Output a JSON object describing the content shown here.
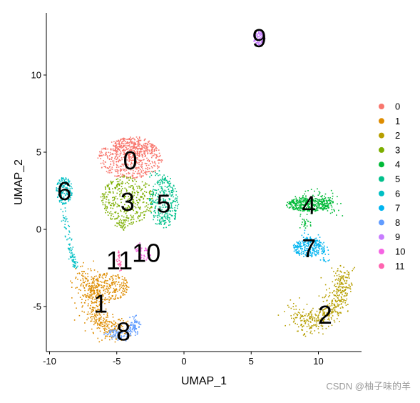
{
  "chart_data": {
    "type": "scatter",
    "title": "",
    "xlabel": "UMAP_1",
    "ylabel": "UMAP_2",
    "xlim": [
      -10.5,
      13.5
    ],
    "ylim": [
      -8,
      14
    ],
    "x_ticks": [
      -10,
      -5,
      0,
      5,
      10
    ],
    "y_ticks": [
      -5,
      0,
      5,
      10
    ],
    "x_tick_labels": [
      "-10",
      "-5",
      "0",
      "5",
      "10"
    ],
    "y_tick_labels": [
      "-5",
      "0",
      "5",
      "10"
    ],
    "grid": false,
    "legend_position": "right",
    "clusters": [
      {
        "name": "0",
        "color": "#F8766D",
        "center": [
          -4.0,
          4.5
        ]
      },
      {
        "name": "1",
        "color": "#DE8C00",
        "center": [
          -6.2,
          -4.8
        ]
      },
      {
        "name": "2",
        "color": "#B79F00",
        "center": [
          10.5,
          -5.5
        ]
      },
      {
        "name": "3",
        "color": "#7CAE00",
        "center": [
          -4.2,
          1.8
        ]
      },
      {
        "name": "4",
        "color": "#00BA38",
        "center": [
          9.3,
          1.6
        ]
      },
      {
        "name": "5",
        "color": "#00C08B",
        "center": [
          -1.5,
          1.7
        ]
      },
      {
        "name": "6",
        "color": "#00BFC4",
        "center": [
          -8.9,
          2.5
        ]
      },
      {
        "name": "7",
        "color": "#00B4F0",
        "center": [
          9.3,
          -1.2
        ]
      },
      {
        "name": "8",
        "color": "#619CFF",
        "center": [
          -4.5,
          -6.6
        ]
      },
      {
        "name": "9",
        "color": "#C77CFF",
        "center": [
          5.6,
          12.4
        ]
      },
      {
        "name": "10",
        "color": "#F564E3",
        "center": [
          -2.8,
          -1.5
        ]
      },
      {
        "name": "11",
        "color": "#FF64B0",
        "center": [
          -4.8,
          -2.0
        ]
      }
    ]
  },
  "watermark": "CSDN @柚子味的羊"
}
